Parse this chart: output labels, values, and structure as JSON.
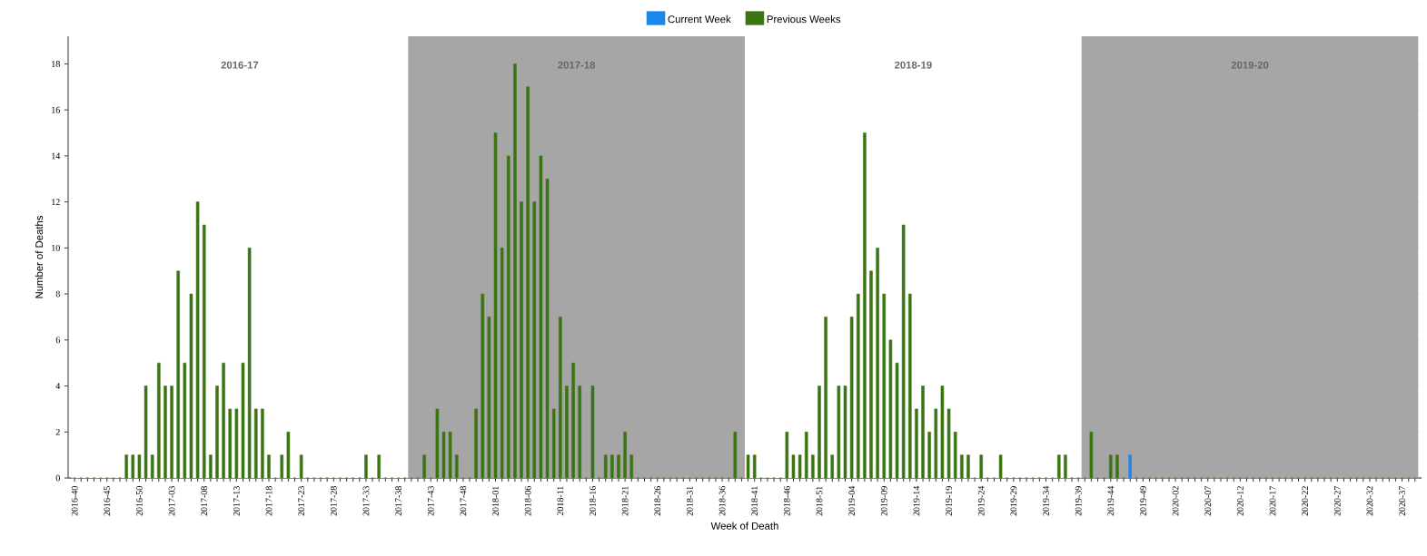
{
  "chart_data": {
    "type": "bar",
    "xlabel": "Week of Death",
    "ylabel": "Number of Deaths",
    "categories": [
      "2016-40",
      null,
      null,
      null,
      null,
      "2016-45",
      null,
      null,
      null,
      null,
      "2016-50",
      null,
      null,
      null,
      null,
      "2017-03",
      null,
      null,
      null,
      null,
      "2017-08",
      null,
      null,
      null,
      null,
      "2017-13",
      null,
      null,
      null,
      null,
      "2017-18",
      null,
      null,
      null,
      null,
      "2017-23",
      null,
      null,
      null,
      null,
      "2017-28",
      null,
      null,
      null,
      null,
      "2017-33",
      null,
      null,
      null,
      null,
      "2017-38",
      null,
      null,
      null,
      null,
      "2017-43",
      null,
      null,
      null,
      null,
      "2017-48",
      null,
      null,
      null,
      null,
      "2018-01",
      null,
      null,
      null,
      null,
      "2018-06",
      null,
      null,
      null,
      null,
      "2018-11",
      null,
      null,
      null,
      null,
      "2018-16",
      null,
      null,
      null,
      null,
      "2018-21",
      null,
      null,
      null,
      null,
      "2018-26",
      null,
      null,
      null,
      null,
      "2018-31",
      null,
      null,
      null,
      null,
      "2018-36",
      null,
      null,
      null,
      null,
      "2018-41",
      null,
      null,
      null,
      null,
      "2018-46",
      null,
      null,
      null,
      null,
      "2018-51",
      null,
      null,
      null,
      null,
      "2019-04",
      null,
      null,
      null,
      null,
      "2019-09",
      null,
      null,
      null,
      null,
      "2019-14",
      null,
      null,
      null,
      null,
      "2019-19",
      null,
      null,
      null,
      null,
      "2019-24",
      null,
      null,
      null,
      null,
      "2019-29",
      null,
      null,
      null,
      null,
      "2019-34",
      null,
      null,
      null,
      null,
      "2019-39",
      null,
      null,
      null,
      null,
      "2019-44",
      null,
      null,
      null,
      null,
      "2019-49",
      null,
      null,
      null,
      null,
      "2020-02",
      null,
      null,
      null,
      null,
      "2020-07",
      null,
      null,
      null,
      null,
      "2020-12",
      null,
      null,
      null,
      null,
      "2020-17",
      null,
      null,
      null,
      null,
      "2020-22",
      null,
      null,
      null,
      null,
      "2020-27",
      null,
      null,
      null,
      null,
      "2020-32",
      null,
      null,
      null,
      null,
      "2020-37",
      null,
      null
    ],
    "series": [
      {
        "name": "Current Week",
        "color": "#1a88e8",
        "values": [
          null,
          null,
          null,
          null,
          null,
          null,
          null,
          null,
          null,
          null,
          null,
          null,
          null,
          null,
          null,
          null,
          null,
          null,
          null,
          null,
          null,
          null,
          null,
          null,
          null,
          null,
          null,
          null,
          null,
          null,
          null,
          null,
          null,
          null,
          null,
          null,
          null,
          null,
          null,
          null,
          null,
          null,
          null,
          null,
          null,
          null,
          null,
          null,
          null,
          null,
          null,
          null,
          null,
          null,
          null,
          null,
          null,
          null,
          null,
          null,
          null,
          null,
          null,
          null,
          null,
          null,
          null,
          null,
          null,
          null,
          null,
          null,
          null,
          null,
          null,
          null,
          null,
          null,
          null,
          null,
          null,
          null,
          null,
          null,
          null,
          null,
          null,
          null,
          null,
          null,
          null,
          null,
          null,
          null,
          null,
          null,
          null,
          null,
          null,
          null,
          null,
          null,
          null,
          null,
          null,
          null,
          null,
          null,
          null,
          null,
          null,
          null,
          null,
          null,
          null,
          null,
          null,
          null,
          null,
          null,
          null,
          null,
          null,
          null,
          null,
          null,
          null,
          null,
          null,
          null,
          null,
          null,
          null,
          null,
          null,
          null,
          null,
          null,
          null,
          null,
          null,
          null,
          null,
          null,
          null,
          null,
          null,
          null,
          null,
          null,
          null,
          null,
          null,
          null,
          null,
          null,
          null,
          null,
          null,
          null,
          null,
          null,
          null,
          1,
          null,
          null,
          null,
          null,
          null,
          null,
          null,
          null,
          null,
          null,
          null,
          null,
          null,
          null,
          null,
          null,
          null,
          null,
          null,
          null,
          null,
          null,
          null,
          null,
          null,
          null,
          null,
          null,
          null,
          null,
          null,
          null,
          null,
          null,
          null,
          null,
          null,
          null,
          null,
          null,
          null,
          null,
          null,
          null
        ]
      },
      {
        "name": "Previous Weeks",
        "color": "#3b7412",
        "values": [
          0,
          0,
          0,
          0,
          0,
          0,
          0,
          0,
          1,
          1,
          1,
          4,
          1,
          5,
          4,
          4,
          9,
          5,
          8,
          12,
          11,
          1,
          4,
          5,
          3,
          3,
          5,
          10,
          3,
          3,
          1,
          0,
          1,
          2,
          0,
          1,
          0,
          0,
          0,
          0,
          0,
          0,
          0,
          0,
          0,
          1,
          0,
          1,
          0,
          0,
          0,
          0,
          0,
          0,
          1,
          0,
          3,
          2,
          2,
          1,
          0,
          0,
          3,
          8,
          7,
          15,
          10,
          14,
          18,
          12,
          17,
          12,
          14,
          13,
          3,
          7,
          4,
          5,
          4,
          0,
          4,
          0,
          1,
          1,
          1,
          2,
          1,
          0,
          0,
          0,
          0,
          0,
          0,
          0,
          0,
          0,
          0,
          0,
          0,
          0,
          0,
          0,
          2,
          0,
          1,
          1,
          0,
          0,
          0,
          0,
          2,
          1,
          1,
          2,
          1,
          4,
          7,
          1,
          4,
          4,
          7,
          8,
          15,
          9,
          10,
          8,
          6,
          5,
          11,
          8,
          3,
          4,
          2,
          3,
          4,
          3,
          2,
          1,
          1,
          0,
          1,
          0,
          0,
          1,
          0,
          0,
          0,
          0,
          0,
          0,
          0,
          0,
          1,
          1,
          0,
          0,
          0,
          2,
          0,
          0,
          1,
          1,
          0,
          null,
          0,
          0,
          0,
          0,
          0,
          0,
          0,
          0,
          0,
          0,
          0,
          0,
          0,
          0,
          0,
          0,
          0,
          0,
          0,
          0,
          0,
          0,
          0,
          0,
          0,
          0,
          0,
          0,
          0,
          0,
          0,
          0,
          0,
          0,
          0,
          0,
          0,
          0,
          0,
          0,
          0,
          0,
          0,
          0
        ]
      }
    ],
    "ylim": [
      0,
      19.2
    ],
    "yticks": [
      0,
      2,
      4,
      6,
      8,
      10,
      12,
      14,
      16,
      18
    ],
    "grid": "y",
    "legend": "top",
    "bands": [
      {
        "axis": "x",
        "from": "2016-40",
        "to": "2017-39",
        "label": "2016-17",
        "color": "#ffffff"
      },
      {
        "axis": "x",
        "from": "2017-40",
        "to": "2018-39",
        "label": "2017-18",
        "color": "#a6a6a6"
      },
      {
        "axis": "x",
        "from": "2018-40",
        "to": "2019-39",
        "label": "2018-19",
        "color": "#ffffff"
      },
      {
        "axis": "x",
        "from": "2019-40",
        "to": "2020-39",
        "label": "2019-20",
        "color": "#a6a6a6"
      }
    ]
  }
}
